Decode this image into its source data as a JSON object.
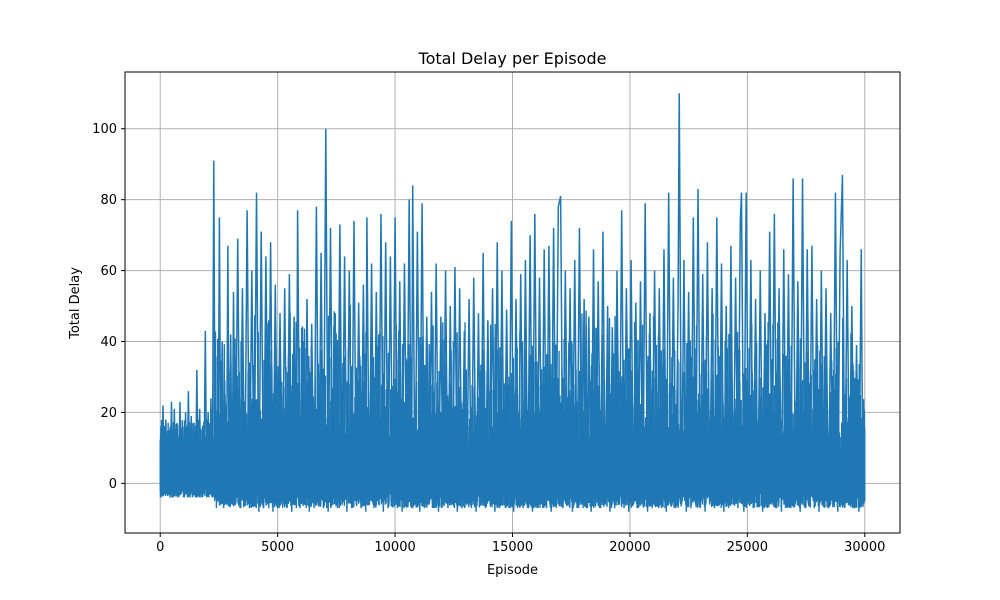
{
  "chart_data": {
    "type": "line",
    "title": "Total Delay per Episode",
    "xlabel": "Episode",
    "ylabel": "Total Delay",
    "xlim": [
      -1500,
      31500
    ],
    "ylim": [
      -14,
      116
    ],
    "xticks": [
      0,
      5000,
      10000,
      15000,
      20000,
      25000,
      30000
    ],
    "xtick_labels": [
      "0",
      "5000",
      "10000",
      "15000",
      "20000",
      "25000",
      "30000"
    ],
    "yticks": [
      0,
      20,
      40,
      60,
      80,
      100
    ],
    "ytick_labels": [
      "0",
      "20",
      "40",
      "60",
      "80",
      "100"
    ],
    "grid": true,
    "legend": "none",
    "series": [
      {
        "color": "#1f77b4",
        "points": [
          [
            0,
            9
          ],
          [
            60,
            -1
          ],
          [
            120,
            22
          ],
          [
            180,
            -3
          ],
          [
            240,
            18
          ],
          [
            300,
            -3
          ],
          [
            360,
            15
          ],
          [
            420,
            -4
          ],
          [
            480,
            23
          ],
          [
            540,
            -4
          ],
          [
            600,
            21
          ],
          [
            660,
            -3
          ],
          [
            720,
            17
          ],
          [
            780,
            -4
          ],
          [
            840,
            23
          ],
          [
            900,
            -3
          ],
          [
            960,
            16
          ],
          [
            1020,
            -4
          ],
          [
            1080,
            20
          ],
          [
            1140,
            -3
          ],
          [
            1200,
            26
          ],
          [
            1260,
            -4
          ],
          [
            1320,
            19
          ],
          [
            1380,
            -3
          ],
          [
            1440,
            17
          ],
          [
            1500,
            -4
          ],
          [
            1560,
            32
          ],
          [
            1620,
            -3
          ],
          [
            1680,
            21
          ],
          [
            1740,
            -4
          ],
          [
            1800,
            15
          ],
          [
            1860,
            -3
          ],
          [
            1920,
            43
          ],
          [
            1980,
            -4
          ],
          [
            2040,
            20
          ],
          [
            2100,
            -3
          ],
          [
            2160,
            24
          ],
          [
            2220,
            -4
          ],
          [
            2280,
            91
          ],
          [
            2340,
            -3
          ],
          [
            2400,
            18
          ],
          [
            2460,
            -5
          ],
          [
            2520,
            75
          ],
          [
            2580,
            -6
          ],
          [
            2640,
            40
          ],
          [
            2700,
            -7
          ],
          [
            2760,
            25
          ],
          [
            2820,
            -6
          ],
          [
            2880,
            67
          ],
          [
            2940,
            -5
          ],
          [
            3000,
            42
          ],
          [
            3060,
            -6
          ],
          [
            3120,
            54
          ],
          [
            3200,
            -6
          ],
          [
            3300,
            69
          ],
          [
            3400,
            -7
          ],
          [
            3500,
            55
          ],
          [
            3600,
            -6
          ],
          [
            3700,
            77
          ],
          [
            3800,
            -7
          ],
          [
            3900,
            60
          ],
          [
            4000,
            -6
          ],
          [
            4100,
            82
          ],
          [
            4200,
            -8
          ],
          [
            4300,
            71
          ],
          [
            4400,
            -7
          ],
          [
            4500,
            64
          ],
          [
            4600,
            -6
          ],
          [
            4700,
            68
          ],
          [
            4800,
            -8
          ],
          [
            4900,
            56
          ],
          [
            5000,
            -7
          ],
          [
            5100,
            48
          ],
          [
            5200,
            -6
          ],
          [
            5300,
            55
          ],
          [
            5400,
            -7
          ],
          [
            5500,
            59
          ],
          [
            5600,
            -8
          ],
          [
            5700,
            47
          ],
          [
            5800,
            -6
          ],
          [
            5850,
            77
          ],
          [
            5950,
            -7
          ],
          [
            6050,
            43
          ],
          [
            6150,
            -6
          ],
          [
            6250,
            52
          ],
          [
            6350,
            -8
          ],
          [
            6450,
            45
          ],
          [
            6550,
            -7
          ],
          [
            6650,
            78
          ],
          [
            6750,
            -6
          ],
          [
            6850,
            65
          ],
          [
            6950,
            -7
          ],
          [
            7050,
            100
          ],
          [
            7150,
            -8
          ],
          [
            7250,
            72
          ],
          [
            7350,
            -6
          ],
          [
            7450,
            48
          ],
          [
            7550,
            -7
          ],
          [
            7650,
            73
          ],
          [
            7750,
            -6
          ],
          [
            7850,
            64
          ],
          [
            7950,
            -8
          ],
          [
            8050,
            60
          ],
          [
            8150,
            -7
          ],
          [
            8250,
            74
          ],
          [
            8350,
            -6
          ],
          [
            8450,
            51
          ],
          [
            8550,
            -7
          ],
          [
            8650,
            56
          ],
          [
            8750,
            -8
          ],
          [
            8800,
            75
          ],
          [
            8900,
            -6
          ],
          [
            9000,
            62
          ],
          [
            9100,
            -7
          ],
          [
            9200,
            54
          ],
          [
            9300,
            -6
          ],
          [
            9400,
            76
          ],
          [
            9500,
            -8
          ],
          [
            9600,
            68
          ],
          [
            9700,
            -7
          ],
          [
            9800,
            64
          ],
          [
            9900,
            -6
          ],
          [
            10000,
            75
          ],
          [
            10100,
            -7
          ],
          [
            10200,
            57
          ],
          [
            10300,
            -8
          ],
          [
            10400,
            62
          ],
          [
            10500,
            -6
          ],
          [
            10600,
            80
          ],
          [
            10700,
            -7
          ],
          [
            10750,
            84
          ],
          [
            10850,
            -6
          ],
          [
            10950,
            71
          ],
          [
            11050,
            -8
          ],
          [
            11150,
            79
          ],
          [
            11250,
            -7
          ],
          [
            11350,
            47
          ],
          [
            11450,
            -6
          ],
          [
            11550,
            54
          ],
          [
            11650,
            -7
          ],
          [
            11750,
            62
          ],
          [
            11850,
            -8
          ],
          [
            11950,
            47
          ],
          [
            12050,
            -6
          ],
          [
            12150,
            60
          ],
          [
            12250,
            -7
          ],
          [
            12350,
            50
          ],
          [
            12450,
            -6
          ],
          [
            12550,
            61
          ],
          [
            12650,
            -8
          ],
          [
            12750,
            55
          ],
          [
            12850,
            -7
          ],
          [
            12950,
            43
          ],
          [
            13050,
            -6
          ],
          [
            13150,
            52
          ],
          [
            13250,
            -7
          ],
          [
            13350,
            58
          ],
          [
            13450,
            -8
          ],
          [
            13550,
            48
          ],
          [
            13650,
            -6
          ],
          [
            13750,
            65
          ],
          [
            13850,
            -7
          ],
          [
            13950,
            46
          ],
          [
            14050,
            -6
          ],
          [
            14150,
            55
          ],
          [
            14250,
            -8
          ],
          [
            14350,
            68
          ],
          [
            14450,
            -7
          ],
          [
            14550,
            60
          ],
          [
            14650,
            -6
          ],
          [
            14750,
            49
          ],
          [
            14850,
            -7
          ],
          [
            14950,
            74
          ],
          [
            15050,
            -8
          ],
          [
            15150,
            52
          ],
          [
            15250,
            -6
          ],
          [
            15350,
            59
          ],
          [
            15450,
            -7
          ],
          [
            15550,
            63
          ],
          [
            15650,
            -6
          ],
          [
            15750,
            70
          ],
          [
            15850,
            -8
          ],
          [
            15950,
            76
          ],
          [
            16050,
            -7
          ],
          [
            16150,
            58
          ],
          [
            16250,
            -6
          ],
          [
            16350,
            66
          ],
          [
            16450,
            -7
          ],
          [
            16550,
            67
          ],
          [
            16650,
            -8
          ],
          [
            16750,
            72
          ],
          [
            16850,
            -6
          ],
          [
            16950,
            78
          ],
          [
            17050,
            81
          ],
          [
            17150,
            -7
          ],
          [
            17250,
            60
          ],
          [
            17350,
            -6
          ],
          [
            17450,
            55
          ],
          [
            17550,
            -8
          ],
          [
            17650,
            63
          ],
          [
            17750,
            -7
          ],
          [
            17850,
            72
          ],
          [
            17950,
            -6
          ],
          [
            18050,
            52
          ],
          [
            18150,
            -7
          ],
          [
            18250,
            47
          ],
          [
            18350,
            -8
          ],
          [
            18450,
            66
          ],
          [
            18550,
            -6
          ],
          [
            18650,
            57
          ],
          [
            18750,
            -7
          ],
          [
            18850,
            71
          ],
          [
            18950,
            -6
          ],
          [
            19050,
            50
          ],
          [
            19150,
            -8
          ],
          [
            19250,
            44
          ],
          [
            19350,
            -7
          ],
          [
            19450,
            60
          ],
          [
            19550,
            -6
          ],
          [
            19650,
            77
          ],
          [
            19750,
            -7
          ],
          [
            19850,
            55
          ],
          [
            19950,
            -8
          ],
          [
            20050,
            63
          ],
          [
            20150,
            -6
          ],
          [
            20250,
            51
          ],
          [
            20350,
            -7
          ],
          [
            20450,
            57
          ],
          [
            20550,
            -6
          ],
          [
            20650,
            79
          ],
          [
            20750,
            -8
          ],
          [
            20850,
            48
          ],
          [
            20950,
            -7
          ],
          [
            21050,
            60
          ],
          [
            21150,
            -6
          ],
          [
            21250,
            55
          ],
          [
            21350,
            -7
          ],
          [
            21450,
            66
          ],
          [
            21550,
            -8
          ],
          [
            21650,
            82
          ],
          [
            21750,
            -6
          ],
          [
            21850,
            58
          ],
          [
            21950,
            -7
          ],
          [
            22050,
            51
          ],
          [
            22100,
            110
          ],
          [
            22200,
            -6
          ],
          [
            22300,
            63
          ],
          [
            22400,
            -8
          ],
          [
            22500,
            54
          ],
          [
            22600,
            -7
          ],
          [
            22700,
            75
          ],
          [
            22800,
            -6
          ],
          [
            22900,
            83
          ],
          [
            23000,
            -7
          ],
          [
            23100,
            59
          ],
          [
            23200,
            -8
          ],
          [
            23300,
            68
          ],
          [
            23400,
            -6
          ],
          [
            23500,
            55
          ],
          [
            23600,
            -7
          ],
          [
            23700,
            75
          ],
          [
            23800,
            -6
          ],
          [
            23900,
            62
          ],
          [
            24000,
            -8
          ],
          [
            24100,
            50
          ],
          [
            24200,
            -7
          ],
          [
            24300,
            67
          ],
          [
            24400,
            -6
          ],
          [
            24500,
            58
          ],
          [
            24600,
            -7
          ],
          [
            24700,
            74
          ],
          [
            24750,
            82
          ],
          [
            24850,
            -8
          ],
          [
            24950,
            82
          ],
          [
            25050,
            -6
          ],
          [
            25150,
            63
          ],
          [
            25250,
            -7
          ],
          [
            25350,
            52
          ],
          [
            25450,
            -6
          ],
          [
            25550,
            60
          ],
          [
            25650,
            -8
          ],
          [
            25750,
            48
          ],
          [
            25850,
            -7
          ],
          [
            25950,
            71
          ],
          [
            26050,
            -6
          ],
          [
            26150,
            76
          ],
          [
            26250,
            -7
          ],
          [
            26350,
            55
          ],
          [
            26450,
            -8
          ],
          [
            26550,
            66
          ],
          [
            26650,
            -6
          ],
          [
            26750,
            59
          ],
          [
            26850,
            -7
          ],
          [
            26950,
            86
          ],
          [
            27050,
            -6
          ],
          [
            27150,
            57
          ],
          [
            27250,
            -8
          ],
          [
            27350,
            86
          ],
          [
            27450,
            -7
          ],
          [
            27550,
            66
          ],
          [
            27650,
            -6
          ],
          [
            27750,
            67
          ],
          [
            27850,
            -7
          ],
          [
            27950,
            52
          ],
          [
            28050,
            -8
          ],
          [
            28150,
            60
          ],
          [
            28250,
            -6
          ],
          [
            28350,
            55
          ],
          [
            28450,
            -7
          ],
          [
            28550,
            48
          ],
          [
            28650,
            -6
          ],
          [
            28750,
            82
          ],
          [
            28850,
            -8
          ],
          [
            28950,
            65
          ],
          [
            29050,
            87
          ],
          [
            29150,
            -7
          ],
          [
            29250,
            63
          ],
          [
            29350,
            -6
          ],
          [
            29450,
            50
          ],
          [
            29550,
            -7
          ],
          [
            29650,
            39
          ],
          [
            29750,
            -8
          ],
          [
            29850,
            66
          ],
          [
            29920,
            -6
          ],
          [
            29960,
            18
          ],
          [
            30000,
            -5
          ]
        ]
      }
    ]
  }
}
